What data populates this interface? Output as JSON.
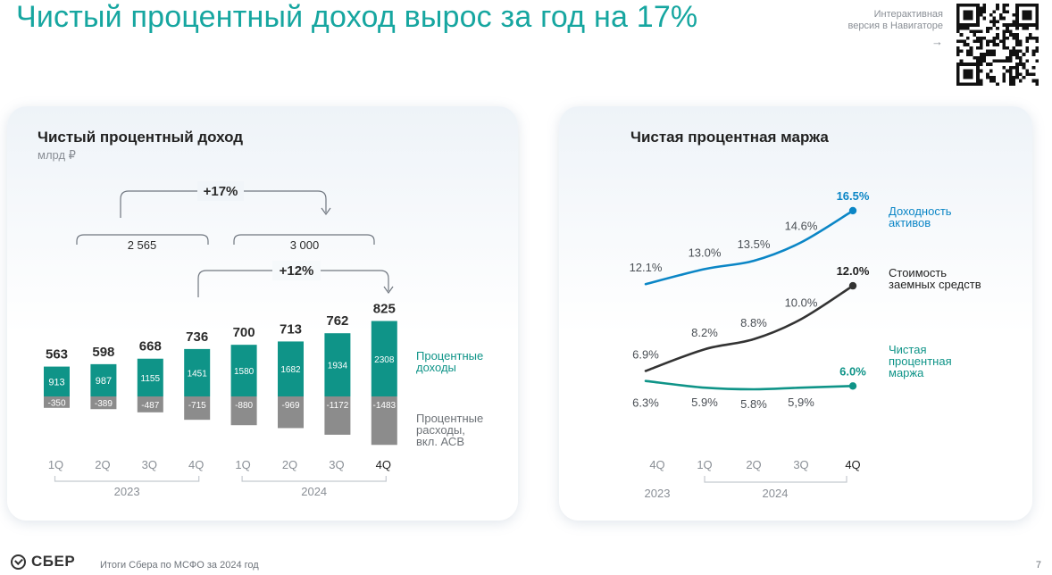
{
  "title": "Чистый процентный доход вырос за год на 17%",
  "nav_hint": {
    "line1": "Интерактивная",
    "line2": "версия в Навигаторе",
    "arrow": "→"
  },
  "footer": {
    "logo": "СБЕР",
    "text": "Итоги Сбера по МСФО за 2024 год",
    "page": "7"
  },
  "left_panel": {
    "title": "Чистый процентный доход",
    "unit": "млрд ₽",
    "annotations": {
      "yoy_growth": "+17%",
      "q_growth": "+12%",
      "total_2023": "2 565",
      "total_2024": "3 000"
    }
  },
  "right_panel": {
    "title": "Чистая процентная маржа"
  },
  "chart_data": [
    {
      "type": "bar",
      "title": "Чистый процентный доход",
      "unit": "млрд ₽",
      "categories": [
        "1Q",
        "2Q",
        "3Q",
        "4Q",
        "1Q",
        "2Q",
        "3Q",
        "4Q"
      ],
      "years": [
        {
          "label": "2023",
          "from": 0,
          "to": 3
        },
        {
          "label": "2024",
          "from": 4,
          "to": 7
        }
      ],
      "totals": [
        563,
        598,
        668,
        736,
        700,
        713,
        762,
        825
      ],
      "series": [
        {
          "name": "Процентные доходы",
          "values": [
            913,
            987,
            1155,
            1451,
            1580,
            1682,
            1934,
            2308
          ],
          "labels": [
            "913",
            "987",
            "1155",
            "1451",
            "1580",
            "1682",
            "1934",
            "2308"
          ],
          "color": "#0f9488"
        },
        {
          "name": "Процентные расходы, вкл. АСВ",
          "values": [
            -350,
            -389,
            -487,
            -715,
            -880,
            -969,
            -1172,
            -1483
          ],
          "labels": [
            "-350",
            "-389",
            "-487",
            "-715",
            "-880",
            "-969",
            "-1172",
            "-1483"
          ],
          "color": "#8c8c8c"
        }
      ],
      "legend_lines": [
        [
          "Процентные",
          "доходы"
        ],
        [
          "Процентные",
          "расходы,",
          "вкл. АСВ"
        ]
      ]
    },
    {
      "type": "line",
      "title": "Чистая процентная маржа",
      "unit": "%",
      "categories": [
        "4Q",
        "1Q",
        "2Q",
        "3Q",
        "4Q"
      ],
      "years": [
        {
          "label": "2023",
          "from": 0,
          "to": 0
        },
        {
          "label": "2024",
          "from": 1,
          "to": 4
        }
      ],
      "series": [
        {
          "name": "Доходность активов",
          "values": [
            12.1,
            13.0,
            13.5,
            14.6,
            16.5
          ],
          "labels": [
            "12.1%",
            "13.0%",
            "13.5%",
            "14.6%",
            "16.5%"
          ],
          "color": "#0b86c6"
        },
        {
          "name": "Стоимость заемных средств",
          "values": [
            6.9,
            8.2,
            8.8,
            10.0,
            12.0
          ],
          "labels": [
            "6.9%",
            "8.2%",
            "8.8%",
            "10.0%",
            "12.0%"
          ],
          "color": "#333333"
        },
        {
          "name": "Чистая процентная маржа",
          "values": [
            6.3,
            5.9,
            5.8,
            5.9,
            6.0
          ],
          "labels": [
            "6.3%",
            "5.9%",
            "5.8%",
            "5,9%",
            "6.0%"
          ],
          "color": "#0f9488"
        }
      ],
      "legend_lines": [
        [
          "Доходность",
          "активов"
        ],
        [
          "Стоимость",
          "заемных средств"
        ],
        [
          "Чистая",
          "процентная",
          "маржа"
        ]
      ]
    }
  ]
}
